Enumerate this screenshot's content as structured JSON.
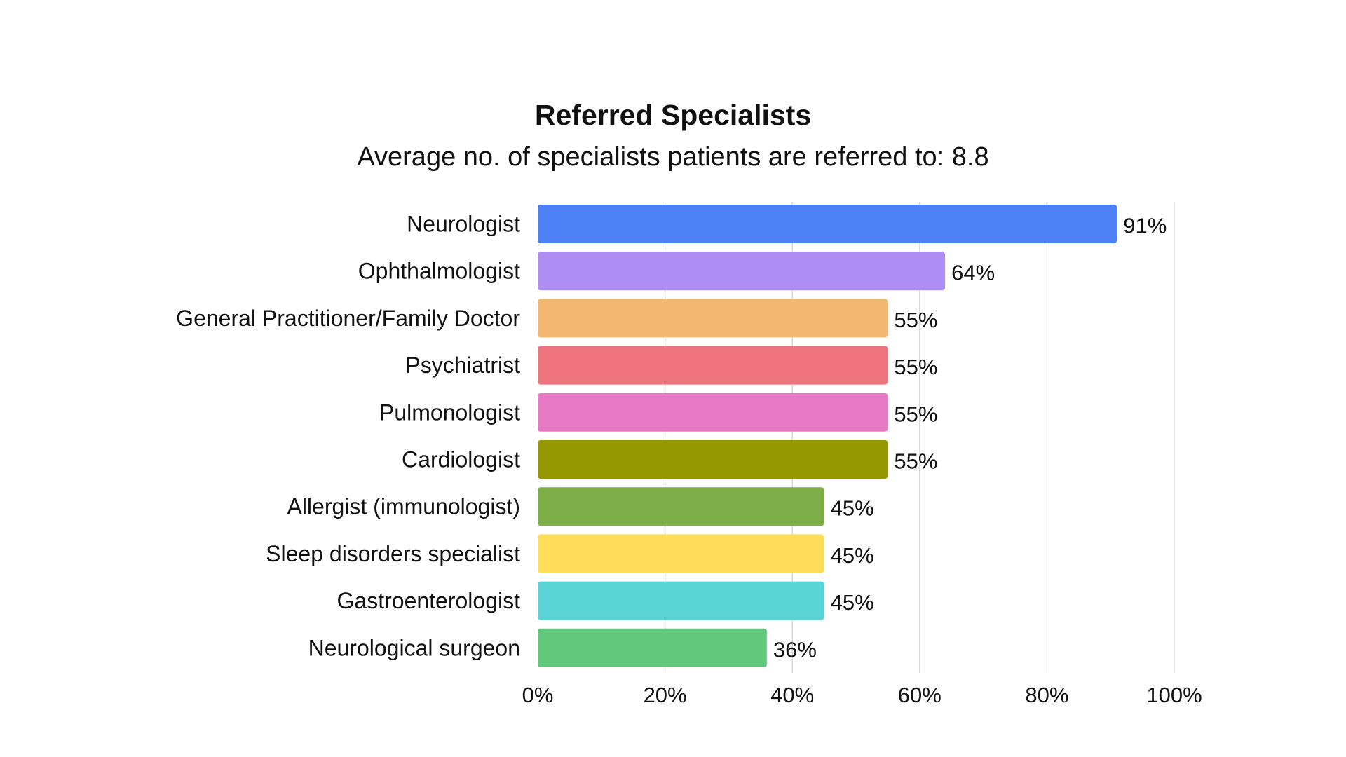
{
  "chart_data": {
    "type": "bar",
    "orientation": "horizontal",
    "title": "Referred Specialists",
    "subtitle": "Average no. of specialists patients are referred to: 8.8",
    "categories": [
      "Neurologist",
      "Ophthalmologist",
      "General Practitioner/Family Doctor",
      "Psychiatrist",
      "Pulmonologist",
      "Cardiologist",
      "Allergist (immunologist)",
      "Sleep disorders specialist",
      "Gastroenterologist",
      "Neurological surgeon"
    ],
    "values": [
      91,
      64,
      55,
      55,
      55,
      55,
      45,
      45,
      45,
      36
    ],
    "value_labels": [
      "91%",
      "64%",
      "55%",
      "55%",
      "55%",
      "55%",
      "45%",
      "45%",
      "45%",
      "36%"
    ],
    "colors": [
      "#4c80f4",
      "#af8ef3",
      "#f2b86f",
      "#ee737c",
      "#e879c4",
      "#959800",
      "#7cad46",
      "#fedd59",
      "#5ad4d4",
      "#61c97c"
    ],
    "xlim": [
      0,
      100
    ],
    "x_ticks": [
      0,
      20,
      40,
      60,
      80,
      100
    ],
    "x_tick_labels": [
      "0%",
      "20%",
      "40%",
      "60%",
      "80%",
      "100%"
    ],
    "xlabel": "",
    "ylabel": "",
    "grid": "vertical",
    "legend": "none"
  }
}
